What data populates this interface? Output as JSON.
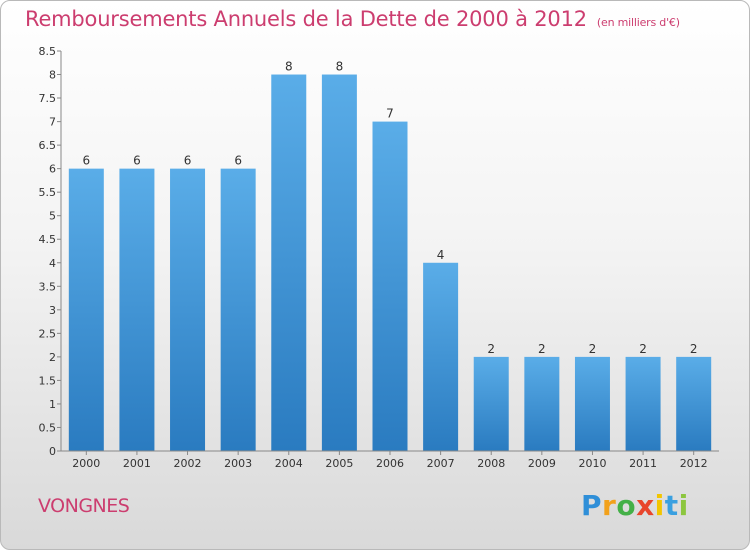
{
  "chart_data": {
    "type": "bar",
    "title": "Remboursements Annuels de la Dette de 2000 à 2012",
    "subtitle": "(en milliers d'€)",
    "categories": [
      "2000",
      "2001",
      "2002",
      "2003",
      "2004",
      "2005",
      "2006",
      "2007",
      "2008",
      "2009",
      "2010",
      "2011",
      "2012"
    ],
    "values": [
      6,
      6,
      6,
      6,
      8,
      8,
      7,
      4,
      2,
      2,
      2,
      2,
      2
    ],
    "ylim": [
      0,
      8.5
    ],
    "yticks": [
      "0",
      "0.5",
      "1",
      "1.5",
      "2",
      "2.5",
      "3",
      "3.5",
      "4",
      "4.5",
      "5",
      "5.5",
      "6",
      "6.5",
      "7",
      "7.5",
      "8",
      "8.5"
    ],
    "grid": false,
    "bar_color_top": "#5aade8",
    "bar_color_bottom": "#2a7bc0"
  },
  "commune": "VONGNES",
  "logo": {
    "letters": [
      "P",
      "r",
      "o",
      "x",
      "i",
      "t",
      "i"
    ],
    "colors": [
      "#2f8fd8",
      "#f2a11b",
      "#43b047",
      "#e8452c",
      "#f2c500",
      "#3aa0e0",
      "#8cc63f"
    ]
  }
}
